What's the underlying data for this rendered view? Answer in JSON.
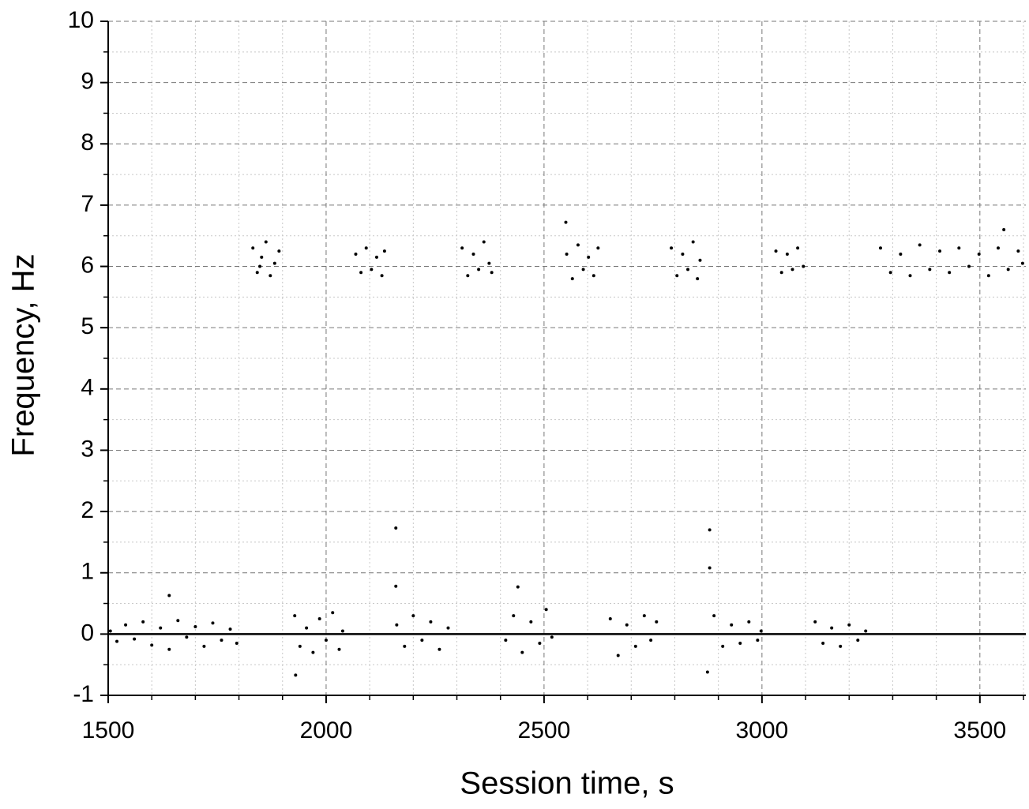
{
  "chart_data": {
    "type": "scatter",
    "x_label": "Session time, s",
    "y_label": "Frequency, Hz",
    "xlim": [
      1500,
      3600
    ],
    "ylim": [
      -1,
      10
    ],
    "xticks": [
      1500,
      2000,
      2500,
      3000,
      3500
    ],
    "yticks": [
      -1,
      0,
      1,
      2,
      3,
      4,
      5,
      6,
      7,
      8,
      9,
      10
    ],
    "xminorticks": [
      1600,
      1700,
      1800,
      1900,
      2100,
      2200,
      2300,
      2400,
      2600,
      2700,
      2800,
      2900,
      3100,
      3200,
      3300,
      3400,
      3600
    ],
    "yminorticks": [
      -0.5,
      0.5,
      1.5,
      2.5,
      3.5,
      4.5,
      5.5,
      6.5,
      7.5,
      8.5,
      9.5
    ],
    "grid": true,
    "zero_line": true,
    "series": [
      {
        "color": "#000000",
        "x": [
          1505,
          1520,
          1540,
          1560,
          1580,
          1600,
          1620,
          1640,
          1660,
          1680,
          1700,
          1720,
          1740,
          1760,
          1780,
          1795,
          1832,
          1842,
          1852,
          1862,
          1872,
          1882,
          1892,
          1848,
          1928,
          1940,
          1955,
          1970,
          1985,
          2000,
          2015,
          2030,
          2038,
          2068,
          2080,
          2092,
          2104,
          2116,
          2128,
          2134,
          2162,
          2180,
          2200,
          2220,
          2240,
          2260,
          2280,
          2312,
          2325,
          2338,
          2350,
          2362,
          2374,
          2380,
          2412,
          2430,
          2450,
          2470,
          2490,
          2505,
          2518,
          2552,
          2565,
          2578,
          2590,
          2602,
          2614,
          2624,
          2652,
          2670,
          2690,
          2710,
          2730,
          2745,
          2758,
          2792,
          2805,
          2818,
          2830,
          2842,
          2852,
          2858,
          2890,
          2910,
          2930,
          2950,
          2970,
          2990,
          2998,
          3032,
          3045,
          3058,
          3070,
          3082,
          3095,
          3122,
          3140,
          3160,
          3180,
          3200,
          3220,
          3238,
          3272,
          3295,
          3318,
          3340,
          3362,
          3385,
          3408,
          3430,
          3452,
          3475,
          3498,
          3520,
          3542,
          3565,
          3588,
          3598,
          2160,
          2160,
          2880,
          2880,
          1640,
          2440,
          2550,
          3555,
          1930,
          2875
        ],
        "y": [
          0.05,
          -0.12,
          0.15,
          -0.08,
          0.2,
          -0.18,
          0.1,
          -0.25,
          0.22,
          -0.05,
          0.12,
          -0.2,
          0.18,
          -0.1,
          0.08,
          -0.15,
          6.3,
          5.9,
          6.15,
          6.4,
          5.85,
          6.05,
          6.25,
          6.0,
          0.3,
          -0.2,
          0.1,
          -0.3,
          0.25,
          -0.1,
          0.35,
          -0.25,
          0.05,
          6.2,
          5.9,
          6.3,
          5.95,
          6.15,
          5.85,
          6.25,
          0.15,
          -0.2,
          0.3,
          -0.1,
          0.2,
          -0.25,
          0.1,
          6.3,
          5.85,
          6.2,
          5.95,
          6.4,
          6.05,
          5.9,
          -0.1,
          0.3,
          -0.3,
          0.2,
          -0.15,
          0.4,
          -0.05,
          6.2,
          5.8,
          6.35,
          5.95,
          6.15,
          5.85,
          6.3,
          0.25,
          -0.35,
          0.15,
          -0.2,
          0.3,
          -0.1,
          0.2,
          6.3,
          5.85,
          6.2,
          5.95,
          6.4,
          5.8,
          6.1,
          0.3,
          -0.2,
          0.15,
          -0.15,
          0.2,
          -0.1,
          0.05,
          6.25,
          5.9,
          6.2,
          5.95,
          6.3,
          6.0,
          0.2,
          -0.15,
          0.1,
          -0.2,
          0.15,
          -0.1,
          0.05,
          6.3,
          5.9,
          6.2,
          5.85,
          6.35,
          5.95,
          6.25,
          5.9,
          6.3,
          6.0,
          6.2,
          5.85,
          6.3,
          5.95,
          6.25,
          6.05,
          1.73,
          0.78,
          1.7,
          1.08,
          0.63,
          0.77,
          6.72,
          6.6,
          -0.67,
          -0.62
        ]
      }
    ]
  }
}
